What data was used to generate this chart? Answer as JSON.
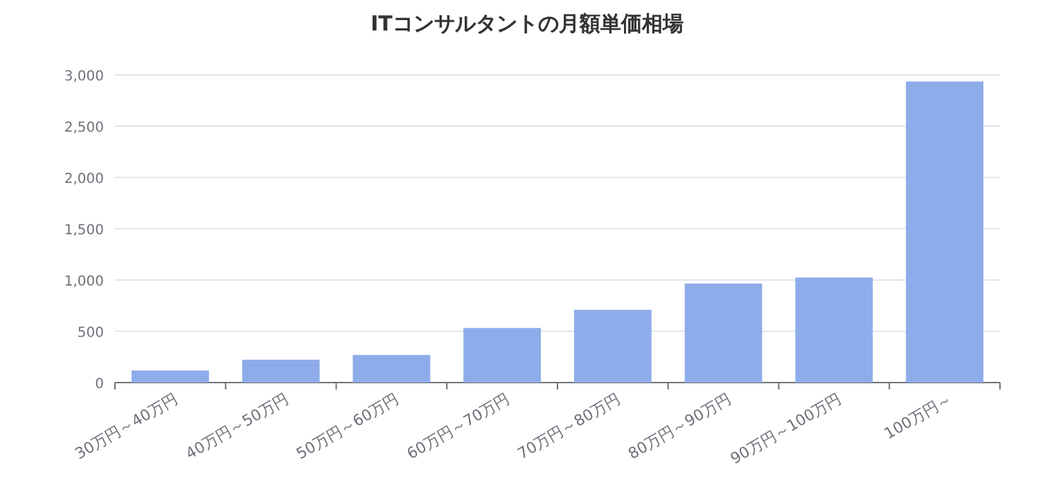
{
  "chart_data": {
    "type": "bar",
    "title": "ITコンサルタントの月額単価相場",
    "categories": [
      "30万円～40万円",
      "40万円～50万円",
      "50万円～60万円",
      "60万円～70万円",
      "70万円～80万円",
      "80万円～90万円",
      "90万円～100万円",
      "100万円～"
    ],
    "values": [
      118,
      223,
      269,
      532,
      709,
      965,
      1024,
      2935
    ],
    "color": "#8eacea",
    "ylim": [
      0,
      3000
    ],
    "yticks": [
      0,
      {
        "value": 500,
        "label": "500"
      },
      {
        "value": 1000,
        "label": "1,000"
      },
      {
        "value": 1500,
        "label": "1,500"
      },
      {
        "value": 2000,
        "label": "2,000"
      },
      {
        "value": 2500,
        "label": "2,500"
      },
      {
        "value": 3000,
        "label": "3,000"
      }
    ],
    "grid": "y"
  }
}
